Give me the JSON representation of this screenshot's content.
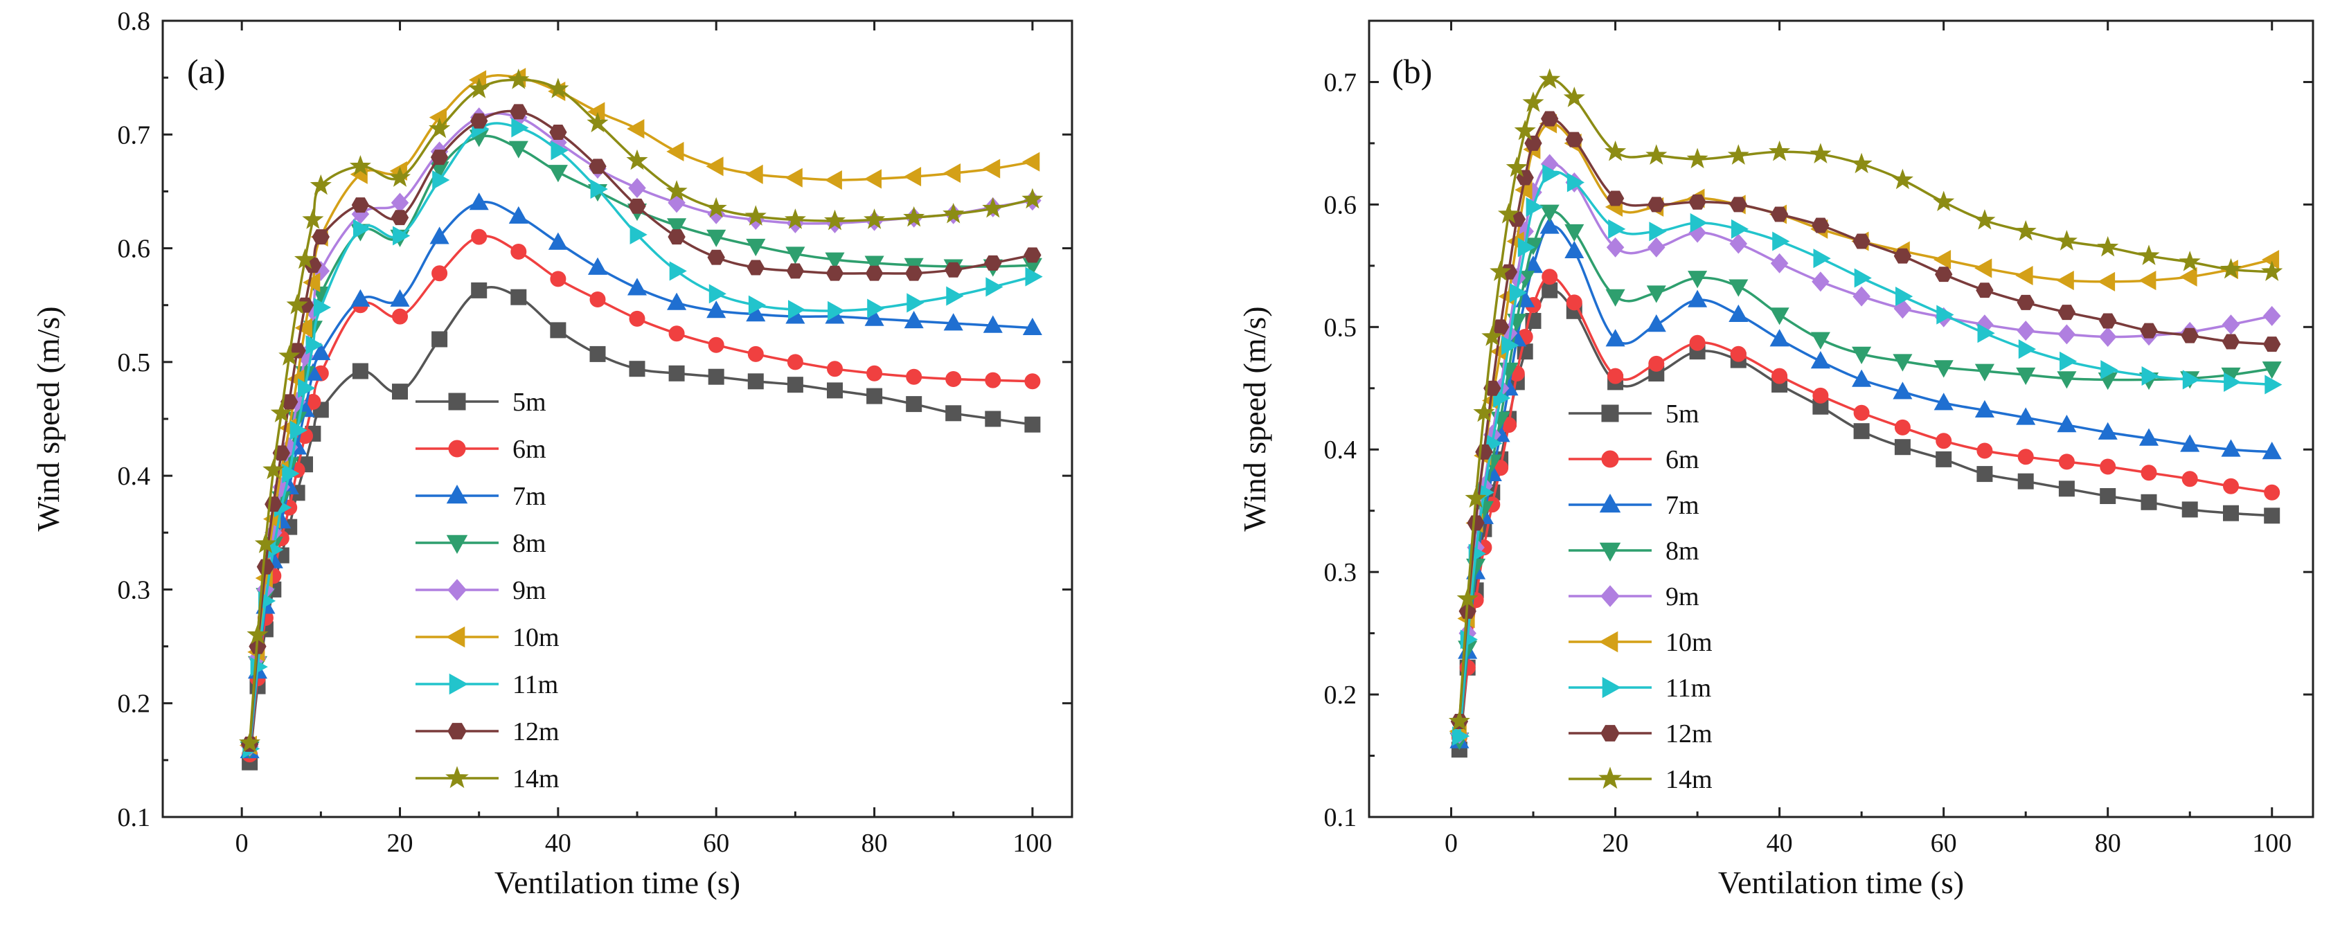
{
  "chart_data": [
    {
      "type": "line",
      "panel_label": "(a)",
      "xlabel": "Ventilation time (s)",
      "ylabel": "Wind speed (m/s)",
      "xlim": [
        -10,
        105
      ],
      "ylim": [
        0.1,
        0.8
      ],
      "xticks": [
        0,
        20,
        40,
        60,
        80,
        100
      ],
      "yticks": [
        0.1,
        0.2,
        0.3,
        0.4,
        0.5,
        0.6,
        0.7,
        0.8
      ],
      "grid": false,
      "legend_position": "lower-center",
      "x": [
        1,
        2,
        3,
        4,
        5,
        6,
        7,
        8,
        9,
        10,
        15,
        20,
        25,
        30,
        35,
        40,
        45,
        50,
        55,
        60,
        65,
        70,
        75,
        80,
        85,
        90,
        95,
        100
      ],
      "series": [
        {
          "name": "5m",
          "color": "#555555",
          "marker": "square",
          "values": [
            0.148,
            0.215,
            0.265,
            0.3,
            0.33,
            0.355,
            0.385,
            0.41,
            0.437,
            0.458,
            0.492,
            0.474,
            0.52,
            0.563,
            0.557,
            0.528,
            0.507,
            0.494,
            0.49,
            0.487,
            0.483,
            0.48,
            0.475,
            0.47,
            0.463,
            0.455,
            0.45,
            0.445
          ]
        },
        {
          "name": "6m",
          "color": "#f04040",
          "marker": "circle",
          "values": [
            0.155,
            0.222,
            0.275,
            0.312,
            0.345,
            0.372,
            0.405,
            0.435,
            0.465,
            0.49,
            0.55,
            0.54,
            0.578,
            0.61,
            0.597,
            0.573,
            0.555,
            0.538,
            0.525,
            0.515,
            0.507,
            0.5,
            0.494,
            0.49,
            0.487,
            0.485,
            0.484,
            0.483
          ]
        },
        {
          "name": "7m",
          "color": "#1f6fd1",
          "marker": "triangle-up",
          "values": [
            0.158,
            0.228,
            0.285,
            0.325,
            0.36,
            0.39,
            0.425,
            0.458,
            0.49,
            0.508,
            0.555,
            0.555,
            0.61,
            0.64,
            0.628,
            0.605,
            0.583,
            0.565,
            0.552,
            0.545,
            0.542,
            0.54,
            0.54,
            0.538,
            0.536,
            0.534,
            0.532,
            0.53
          ]
        },
        {
          "name": "8m",
          "color": "#2e9f6e",
          "marker": "triangle-down",
          "values": [
            0.16,
            0.235,
            0.295,
            0.34,
            0.38,
            0.41,
            0.45,
            0.49,
            0.53,
            0.56,
            0.615,
            0.61,
            0.67,
            0.698,
            0.688,
            0.667,
            0.65,
            0.633,
            0.62,
            0.61,
            0.602,
            0.595,
            0.59,
            0.587,
            0.585,
            0.584,
            0.584,
            0.585
          ]
        },
        {
          "name": "9m",
          "color": "#b07fe0",
          "marker": "diamond",
          "values": [
            0.162,
            0.24,
            0.3,
            0.35,
            0.39,
            0.425,
            0.465,
            0.505,
            0.545,
            0.58,
            0.63,
            0.64,
            0.685,
            0.715,
            0.715,
            0.693,
            0.67,
            0.653,
            0.64,
            0.63,
            0.625,
            0.622,
            0.622,
            0.624,
            0.627,
            0.63,
            0.636,
            0.642
          ]
        },
        {
          "name": "10m",
          "color": "#d4a017",
          "marker": "triangle-left",
          "values": [
            0.163,
            0.245,
            0.31,
            0.362,
            0.405,
            0.442,
            0.485,
            0.53,
            0.57,
            0.61,
            0.665,
            0.668,
            0.715,
            0.748,
            0.75,
            0.738,
            0.72,
            0.705,
            0.685,
            0.672,
            0.665,
            0.662,
            0.66,
            0.661,
            0.663,
            0.666,
            0.67,
            0.676
          ]
        },
        {
          "name": "11m",
          "color": "#22c4cc",
          "marker": "triangle-right",
          "values": [
            0.16,
            0.232,
            0.29,
            0.335,
            0.372,
            0.402,
            0.44,
            0.477,
            0.515,
            0.548,
            0.617,
            0.611,
            0.66,
            0.705,
            0.706,
            0.686,
            0.652,
            0.612,
            0.58,
            0.56,
            0.55,
            0.546,
            0.545,
            0.547,
            0.552,
            0.558,
            0.566,
            0.575
          ]
        },
        {
          "name": "12m",
          "color": "#7a3b3b",
          "marker": "hexagon",
          "values": [
            0.164,
            0.25,
            0.32,
            0.375,
            0.42,
            0.465,
            0.51,
            0.55,
            0.585,
            0.61,
            0.638,
            0.627,
            0.68,
            0.712,
            0.72,
            0.702,
            0.672,
            0.637,
            0.61,
            0.592,
            0.583,
            0.58,
            0.578,
            0.578,
            0.578,
            0.581,
            0.587,
            0.594
          ]
        },
        {
          "name": "14m",
          "color": "#8c8c14",
          "marker": "star",
          "values": [
            0.165,
            0.26,
            0.34,
            0.405,
            0.455,
            0.505,
            0.55,
            0.59,
            0.625,
            0.655,
            0.672,
            0.662,
            0.705,
            0.74,
            0.748,
            0.74,
            0.71,
            0.677,
            0.65,
            0.635,
            0.628,
            0.625,
            0.624,
            0.625,
            0.627,
            0.63,
            0.635,
            0.643
          ]
        }
      ]
    },
    {
      "type": "line",
      "panel_label": "(b)",
      "xlabel": "Ventilation time (s)",
      "ylabel": "Wind speed (m/s)",
      "xlim": [
        -10,
        105
      ],
      "ylim": [
        0.1,
        0.75
      ],
      "xticks": [
        0,
        20,
        40,
        60,
        80,
        100
      ],
      "yticks": [
        0.1,
        0.2,
        0.3,
        0.4,
        0.5,
        0.6,
        0.7
      ],
      "grid": false,
      "legend_position": "lower-center",
      "x": [
        1,
        2,
        3,
        4,
        5,
        6,
        7,
        8,
        9,
        10,
        12,
        15,
        20,
        25,
        30,
        35,
        40,
        45,
        50,
        55,
        60,
        65,
        70,
        75,
        80,
        85,
        90,
        95,
        100
      ],
      "series": [
        {
          "name": "5m",
          "color": "#555555",
          "marker": "square",
          "values": [
            0.155,
            0.222,
            0.285,
            0.335,
            0.365,
            0.392,
            0.425,
            0.455,
            0.48,
            0.505,
            0.53,
            0.513,
            0.455,
            0.462,
            0.48,
            0.473,
            0.453,
            0.435,
            0.415,
            0.402,
            0.392,
            0.38,
            0.374,
            0.368,
            0.362,
            0.357,
            0.351,
            0.348,
            0.346
          ]
        },
        {
          "name": "6m",
          "color": "#f04040",
          "marker": "circle",
          "values": [
            0.165,
            0.222,
            0.277,
            0.32,
            0.355,
            0.385,
            0.42,
            0.462,
            0.492,
            0.518,
            0.541,
            0.52,
            0.46,
            0.47,
            0.487,
            0.478,
            0.46,
            0.444,
            0.43,
            0.418,
            0.407,
            0.399,
            0.394,
            0.39,
            0.386,
            0.381,
            0.376,
            0.37,
            0.365
          ]
        },
        {
          "name": "7m",
          "color": "#1f6fd1",
          "marker": "triangle-up",
          "values": [
            0.162,
            0.235,
            0.3,
            0.345,
            0.38,
            0.412,
            0.45,
            0.49,
            0.522,
            0.55,
            0.582,
            0.562,
            0.49,
            0.502,
            0.522,
            0.51,
            0.49,
            0.472,
            0.457,
            0.447,
            0.438,
            0.432,
            0.426,
            0.42,
            0.414,
            0.409,
            0.404,
            0.4,
            0.398
          ]
        },
        {
          "name": "8m",
          "color": "#2e9f6e",
          "marker": "triangle-down",
          "values": [
            0.163,
            0.238,
            0.305,
            0.352,
            0.39,
            0.425,
            0.465,
            0.505,
            0.54,
            0.567,
            0.594,
            0.578,
            0.525,
            0.528,
            0.54,
            0.533,
            0.51,
            0.49,
            0.478,
            0.472,
            0.467,
            0.464,
            0.461,
            0.458,
            0.457,
            0.457,
            0.458,
            0.461,
            0.466
          ]
        },
        {
          "name": "9m",
          "color": "#b07fe0",
          "marker": "diamond",
          "values": [
            0.168,
            0.25,
            0.32,
            0.37,
            0.412,
            0.45,
            0.495,
            0.54,
            0.578,
            0.61,
            0.633,
            0.618,
            0.565,
            0.565,
            0.577,
            0.568,
            0.552,
            0.537,
            0.525,
            0.515,
            0.508,
            0.502,
            0.497,
            0.494,
            0.492,
            0.493,
            0.496,
            0.502,
            0.509
          ]
        },
        {
          "name": "10m",
          "color": "#d4a017",
          "marker": "triangle-left",
          "values": [
            0.17,
            0.262,
            0.34,
            0.395,
            0.44,
            0.48,
            0.525,
            0.57,
            0.612,
            0.645,
            0.666,
            0.65,
            0.598,
            0.598,
            0.605,
            0.6,
            0.592,
            0.58,
            0.57,
            0.562,
            0.555,
            0.548,
            0.542,
            0.538,
            0.537,
            0.538,
            0.541,
            0.547,
            0.555
          ]
        },
        {
          "name": "11m",
          "color": "#22c4cc",
          "marker": "triangle-right",
          "values": [
            0.166,
            0.245,
            0.315,
            0.365,
            0.405,
            0.442,
            0.485,
            0.528,
            0.565,
            0.598,
            0.625,
            0.618,
            0.58,
            0.578,
            0.585,
            0.58,
            0.57,
            0.556,
            0.54,
            0.525,
            0.51,
            0.495,
            0.482,
            0.472,
            0.465,
            0.46,
            0.457,
            0.455,
            0.453
          ]
        },
        {
          "name": "12m",
          "color": "#7a3b3b",
          "marker": "hexagon",
          "values": [
            0.178,
            0.268,
            0.34,
            0.398,
            0.45,
            0.5,
            0.545,
            0.588,
            0.622,
            0.65,
            0.67,
            0.653,
            0.605,
            0.6,
            0.602,
            0.6,
            0.592,
            0.583,
            0.57,
            0.558,
            0.543,
            0.53,
            0.52,
            0.512,
            0.505,
            0.497,
            0.493,
            0.488,
            0.486
          ]
        },
        {
          "name": "14m",
          "color": "#8c8c14",
          "marker": "star",
          "values": [
            0.178,
            0.278,
            0.36,
            0.43,
            0.492,
            0.545,
            0.592,
            0.63,
            0.66,
            0.683,
            0.702,
            0.687,
            0.643,
            0.64,
            0.637,
            0.64,
            0.643,
            0.641,
            0.633,
            0.62,
            0.602,
            0.587,
            0.578,
            0.57,
            0.565,
            0.558,
            0.553,
            0.547,
            0.545
          ]
        }
      ]
    }
  ]
}
